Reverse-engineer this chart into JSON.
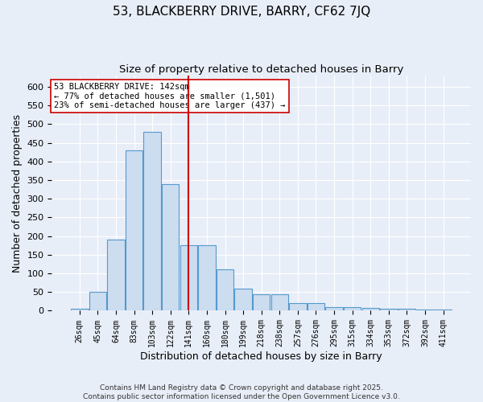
{
  "title": "53, BLACKBERRY DRIVE, BARRY, CF62 7JQ",
  "subtitle": "Size of property relative to detached houses in Barry",
  "xlabel": "Distribution of detached houses by size in Barry",
  "ylabel": "Number of detached properties",
  "bar_labels": [
    "26sqm",
    "45sqm",
    "64sqm",
    "83sqm",
    "103sqm",
    "122sqm",
    "141sqm",
    "160sqm",
    "180sqm",
    "199sqm",
    "218sqm",
    "238sqm",
    "257sqm",
    "276sqm",
    "295sqm",
    "315sqm",
    "334sqm",
    "353sqm",
    "372sqm",
    "392sqm",
    "411sqm"
  ],
  "bar_values": [
    5,
    50,
    190,
    430,
    480,
    340,
    175,
    175,
    110,
    60,
    45,
    45,
    20,
    20,
    10,
    10,
    7,
    5,
    5,
    3,
    3
  ],
  "bar_color": "#ccddf0",
  "bar_edge_color": "#5599cc",
  "vline_x_index": 6,
  "vline_color": "#cc0000",
  "annotation_text": "53 BLACKBERRY DRIVE: 142sqm\n← 77% of detached houses are smaller (1,501)\n23% of semi-detached houses are larger (437) →",
  "annotation_box_color": "#ffffff",
  "annotation_box_edge_color": "#cc0000",
  "ylim": [
    0,
    630
  ],
  "yticks": [
    0,
    50,
    100,
    150,
    200,
    250,
    300,
    350,
    400,
    450,
    500,
    550,
    600
  ],
  "bg_color": "#e8eef8",
  "grid_color": "#ffffff",
  "footnote": "Contains HM Land Registry data © Crown copyright and database right 2025.\nContains public sector information licensed under the Open Government Licence v3.0.",
  "title_fontsize": 11,
  "subtitle_fontsize": 9.5,
  "xlabel_fontsize": 9,
  "ylabel_fontsize": 9,
  "annotation_fontsize": 7.5
}
